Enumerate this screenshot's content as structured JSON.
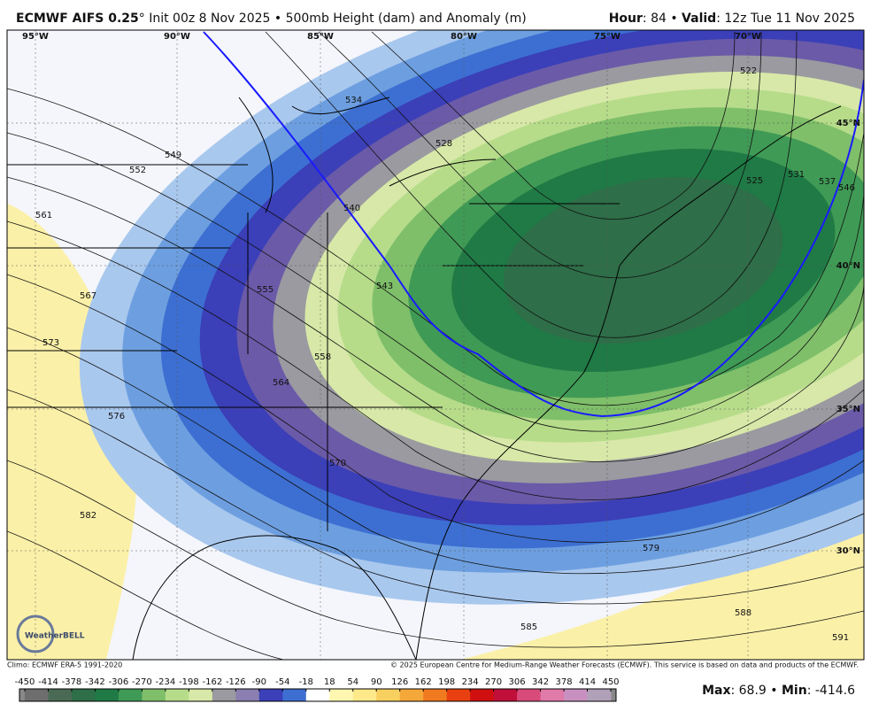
{
  "header": {
    "left": [
      {
        "text": "ECMWF AIFS 0.25",
        "bold": true
      },
      {
        "text": "° Init 00z 8 Nov 2025 • 500mb Height (dam) and Anomaly (m)",
        "bold": false
      }
    ],
    "right": [
      {
        "text": "Hour",
        "bold": true
      },
      {
        "text": ": 84 • ",
        "bold": false
      },
      {
        "text": "Valid",
        "bold": true
      },
      {
        "text": ": 12z Tue 11 Nov 2025",
        "bold": false
      }
    ]
  },
  "map": {
    "longitude_labels": [
      "95°W",
      "90°W",
      "85°W",
      "80°W",
      "75°W",
      "70°W"
    ],
    "latitude_labels": [
      "45°N",
      "40°N",
      "35°N",
      "30°N"
    ],
    "contour_labels": [
      534,
      528,
      522,
      525,
      531,
      537,
      546,
      549,
      552,
      561,
      567,
      573,
      576,
      582,
      555,
      543,
      540,
      558,
      564,
      570,
      579,
      585,
      588,
      591
    ],
    "logo": "WeatherBELL"
  },
  "footer": {
    "climo": "Climo: ECMWF ERA-5 1991-2020",
    "copyright": "© 2025 European Centre for Medium-Range Weather Forecasts (ECMWF). This service is based on data and products of the ECMWF.",
    "stats": [
      {
        "text": "Max",
        "bold": true
      },
      {
        "text": ": 68.9 • ",
        "bold": false
      },
      {
        "text": "Min",
        "bold": true
      },
      {
        "text": ": -414.6",
        "bold": false
      }
    ]
  },
  "colorbar": {
    "ticks": [
      -450,
      -414,
      -378,
      -342,
      -306,
      -270,
      -234,
      -198,
      -162,
      -126,
      -90,
      -54,
      -18,
      18,
      54,
      90,
      126,
      162,
      198,
      234,
      270,
      306,
      342,
      378,
      414,
      450
    ],
    "colors": [
      "#6e6e6e",
      "#4a6a55",
      "#2e6e48",
      "#1f7a45",
      "#3f9a55",
      "#7fbf6a",
      "#b6dc8a",
      "#d8e8a8",
      "#9a9aa0",
      "#8a7fb0",
      "#3b3fb8",
      "#3d6fd2",
      "#ffffff",
      "#fff6b0",
      "#fde98a",
      "#f8d060",
      "#f5a83a",
      "#f07a20",
      "#e84010",
      "#d01010",
      "#c0103a",
      "#d84a7a",
      "#e07aa8",
      "#c890c0",
      "#b0a0b8"
    ]
  }
}
